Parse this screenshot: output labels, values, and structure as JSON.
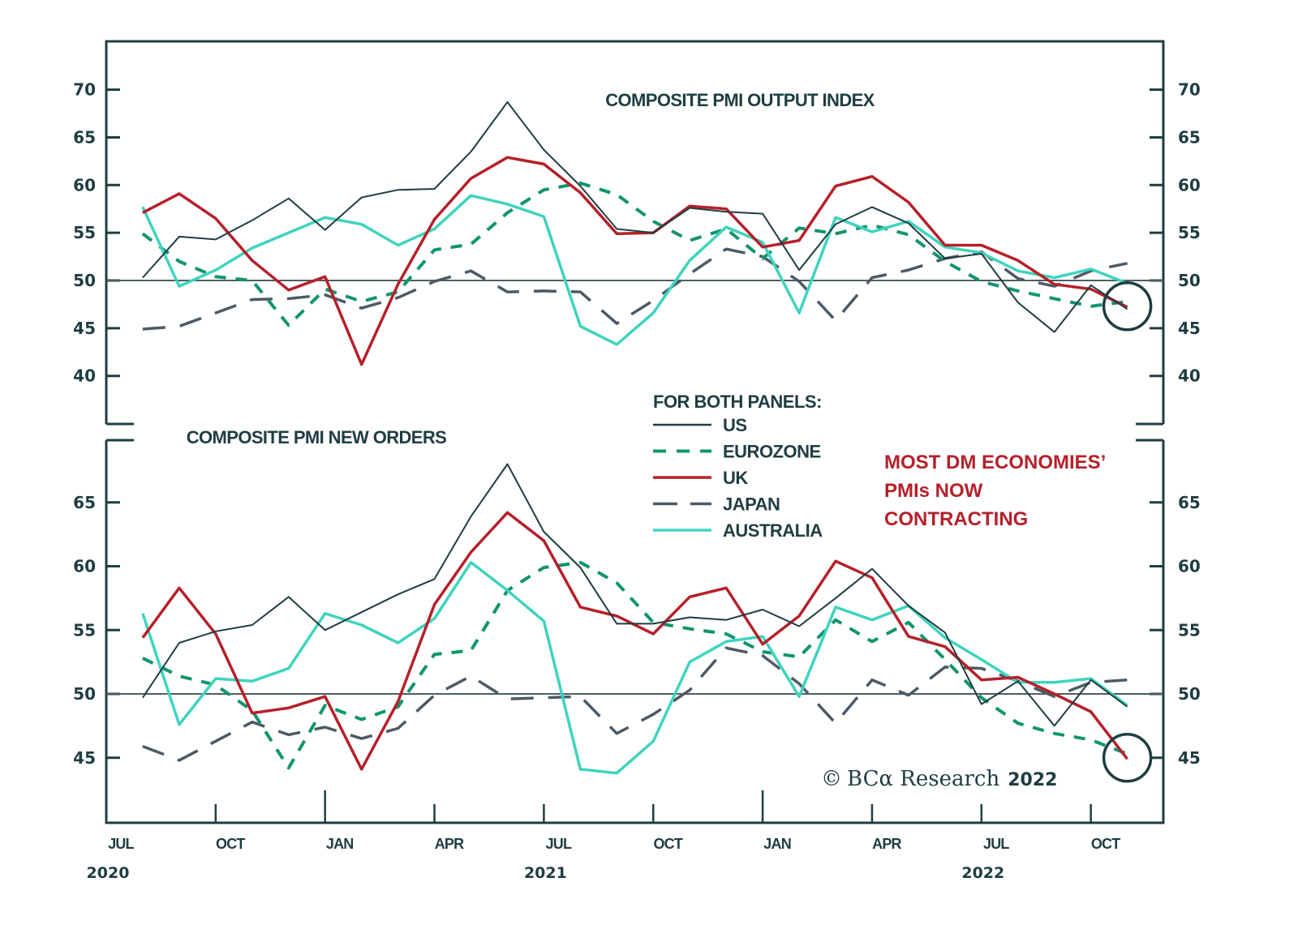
{
  "chart_data": {
    "type": "line",
    "source_credit": {
      "symbol": "©",
      "brand": "BCα Research",
      "year": "2022"
    },
    "x_months": [
      "2020-08",
      "2020-09",
      "2020-10",
      "2020-11",
      "2020-12",
      "2021-01",
      "2021-02",
      "2021-03",
      "2021-04",
      "2021-05",
      "2021-06",
      "2021-07",
      "2021-08",
      "2021-09",
      "2021-10",
      "2021-11",
      "2021-12",
      "2022-01",
      "2022-02",
      "2022-03",
      "2022-04",
      "2022-05",
      "2022-06",
      "2022-07",
      "2022-08",
      "2022-09",
      "2022-10",
      "2022-11"
    ],
    "x_ticks": [
      {
        "month": "2020-07",
        "label": "JUL",
        "major": false
      },
      {
        "month": "2020-10",
        "label": "OCT",
        "major": false
      },
      {
        "month": "2021-01",
        "label": "JAN",
        "major": true
      },
      {
        "month": "2021-04",
        "label": "APR",
        "major": false
      },
      {
        "month": "2021-07",
        "label": "JUL",
        "major": false
      },
      {
        "month": "2021-10",
        "label": "OCT",
        "major": false
      },
      {
        "month": "2022-01",
        "label": "JAN",
        "major": true
      },
      {
        "month": "2022-04",
        "label": "APR",
        "major": false
      },
      {
        "month": "2022-07",
        "label": "JUL",
        "major": false
      },
      {
        "month": "2022-10",
        "label": "OCT",
        "major": false
      }
    ],
    "x_years": [
      {
        "month": "2020-07",
        "label": "2020"
      },
      {
        "month": "2021-07",
        "label": "2021"
      },
      {
        "month": "2022-07",
        "label": "2022"
      }
    ],
    "legend": {
      "title": "FOR BOTH PANELS:",
      "placement": "center"
    },
    "annotation": {
      "lines": [
        "MOST DM ECONOMIES’",
        "PMIs NOW",
        "CONTRACTING"
      ],
      "color": "#b5202a"
    },
    "series_styles": [
      {
        "name": "US",
        "color": "#1f3d42",
        "style": "solid",
        "width": 2
      },
      {
        "name": "EUROZONE",
        "color": "#10956e",
        "style": "dashed",
        "width": 4
      },
      {
        "name": "UK",
        "color": "#b5202a",
        "style": "solid",
        "width": 3.5
      },
      {
        "name": "JAPAN",
        "color": "#4d5a66",
        "style": "longdash",
        "width": 3.5
      },
      {
        "name": "AUSTRALIA",
        "color": "#3ed4be",
        "style": "solid",
        "width": 3.5
      }
    ],
    "panels": [
      {
        "title": "COMPOSITE PMI OUTPUT INDEX",
        "ylim": [
          35,
          75
        ],
        "yticks": [
          40,
          45,
          50,
          55,
          60,
          65,
          70
        ],
        "reference_line": 50,
        "highlight_circle": {
          "month": "2022-11",
          "value": 47.3
        },
        "series": [
          {
            "name": "US",
            "values": [
              50.3,
              54.6,
              54.3,
              56.3,
              58.6,
              55.3,
              58.7,
              59.5,
              59.6,
              63.5,
              68.7,
              63.7,
              59.9,
              55.4,
              55.0,
              57.6,
              57.2,
              57.0,
              51.1,
              55.9,
              57.7,
              56.0,
              52.3,
              52.8,
              47.7,
              44.6,
              49.5,
              47.0
            ]
          },
          {
            "name": "EUROZONE",
            "values": [
              54.9,
              52.0,
              50.4,
              50.0,
              45.3,
              49.1,
              47.8,
              48.8,
              53.2,
              53.8,
              57.1,
              59.5,
              60.2,
              59.0,
              56.2,
              54.2,
              55.4,
              52.3,
              55.5,
              54.9,
              55.8,
              54.8,
              52.0,
              49.9,
              48.9,
              48.1,
              47.3,
              47.8
            ]
          },
          {
            "name": "UK",
            "values": [
              57.1,
              59.1,
              56.5,
              52.1,
              49.0,
              50.4,
              41.2,
              49.6,
              56.4,
              60.7,
              62.9,
              62.2,
              59.2,
              54.9,
              55.0,
              57.8,
              57.5,
              53.5,
              54.2,
              59.9,
              60.9,
              58.2,
              53.7,
              53.7,
              52.1,
              49.6,
              49.1,
              47.2
            ]
          },
          {
            "name": "JAPAN",
            "values": [
              44.9,
              45.2,
              46.6,
              48.0,
              48.1,
              48.5,
              47.1,
              48.2,
              49.9,
              51.0,
              48.8,
              48.9,
              48.8,
              45.5,
              47.9,
              50.7,
              53.3,
              52.5,
              49.9,
              45.8,
              50.3,
              51.1,
              52.3,
              53.0,
              50.2,
              49.4,
              51.0,
              51.8
            ]
          },
          {
            "name": "AUSTRALIA",
            "values": [
              57.7,
              49.4,
              51.1,
              53.4,
              55.0,
              56.6,
              55.9,
              53.7,
              55.4,
              58.9,
              58.0,
              56.7,
              45.2,
              43.3,
              46.6,
              52.1,
              55.6,
              54.0,
              46.6,
              56.6,
              55.1,
              56.2,
              53.5,
              52.9,
              51.0,
              50.3,
              51.2,
              49.7
            ]
          }
        ]
      },
      {
        "title": "COMPOSITE PMI NEW ORDERS",
        "ylim": [
          40,
          70
        ],
        "yticks": [
          45,
          50,
          55,
          60,
          65
        ],
        "reference_line": 50,
        "highlight_circle": {
          "month": "2022-11",
          "value": 45.0
        },
        "series": [
          {
            "name": "US",
            "values": [
              49.7,
              54.0,
              54.9,
              55.4,
              57.6,
              55.0,
              56.4,
              57.8,
              59.0,
              63.9,
              68.0,
              62.7,
              59.9,
              55.5,
              55.5,
              56.0,
              55.8,
              56.6,
              55.3,
              57.5,
              59.8,
              56.9,
              54.8,
              49.2,
              51.0,
              47.5,
              51.1,
              49.0
            ]
          },
          {
            "name": "EUROZONE",
            "values": [
              52.8,
              51.4,
              50.7,
              48.7,
              44.2,
              49.1,
              48.0,
              49.0,
              53.1,
              53.4,
              58.1,
              59.9,
              60.3,
              58.7,
              55.6,
              55.1,
              54.7,
              53.3,
              52.9,
              55.8,
              54.1,
              55.6,
              52.7,
              49.7,
              47.7,
              46.9,
              46.4,
              45.3
            ]
          },
          {
            "name": "UK",
            "values": [
              54.4,
              58.3,
              54.7,
              48.5,
              48.9,
              49.8,
              44.1,
              49.4,
              57.0,
              61.1,
              64.2,
              62.0,
              56.8,
              56.1,
              54.7,
              57.6,
              58.3,
              53.9,
              56.1,
              60.4,
              59.1,
              54.5,
              53.7,
              51.1,
              51.3,
              50.0,
              48.6,
              44.9
            ]
          },
          {
            "name": "JAPAN",
            "values": [
              45.9,
              44.8,
              46.3,
              47.8,
              46.8,
              47.4,
              46.5,
              47.3,
              49.9,
              51.4,
              49.6,
              49.7,
              49.8,
              46.9,
              48.4,
              50.3,
              53.6,
              53.0,
              50.8,
              47.7,
              51.1,
              49.9,
              52.1,
              52.0,
              51.0,
              49.8,
              50.9,
              51.1
            ]
          },
          {
            "name": "AUSTRALIA",
            "values": [
              56.3,
              47.6,
              51.2,
              51.0,
              52.0,
              56.3,
              55.4,
              54.0,
              55.9,
              60.3,
              58.1,
              55.7,
              44.1,
              43.8,
              46.3,
              52.5,
              54.1,
              54.5,
              49.8,
              56.8,
              55.8,
              56.9,
              54.4,
              52.7,
              50.9,
              50.9,
              51.2,
              49.1
            ]
          }
        ]
      }
    ]
  }
}
